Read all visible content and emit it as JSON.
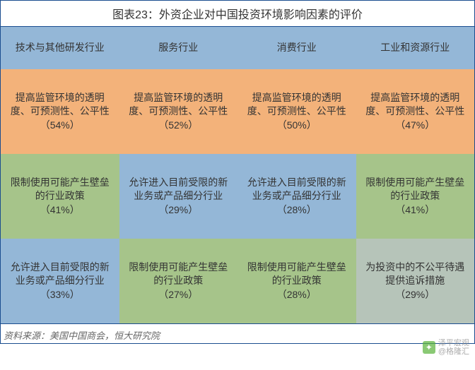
{
  "title": "图表23：外资企业对中国投资环境影响因素的评价",
  "footer": "资料来源：美国中国商会，恒大研究院",
  "watermark": {
    "top": "泽平宏观",
    "bottom": "@格隆汇"
  },
  "colors": {
    "header_bg": "#94b7d7",
    "orange": "#f3b27a",
    "green": "#a6c48a",
    "blue": "#94b7d7",
    "gray": "#b6c4b9",
    "border": "#1f3a6e"
  },
  "columns": [
    "技术与其他研发行业",
    "服务行业",
    "消费行业",
    "工业和资源行业"
  ],
  "rows": [
    [
      {
        "text": "提高监管环境的透明度、可预测性、公平性",
        "pct": "（54%）",
        "color": "orange"
      },
      {
        "text": "提高监管环境的透明度、可预测性、公平性",
        "pct": "（52%）",
        "color": "orange"
      },
      {
        "text": "提高监管环境的透明度、可预测性、公平性",
        "pct": "（50%）",
        "color": "orange"
      },
      {
        "text": "提高监管环境的透明度、可预测性、公平性",
        "pct": "（47%）",
        "color": "orange"
      }
    ],
    [
      {
        "text": "限制使用可能产生壁垒的行业政策",
        "pct": "（41%）",
        "color": "green"
      },
      {
        "text": "允许进入目前受限的新业务或产品细分行业",
        "pct": "（29%）",
        "color": "blue"
      },
      {
        "text": "允许进入目前受限的新业务或产品细分行业",
        "pct": "（28%）",
        "color": "blue"
      },
      {
        "text": "限制使用可能产生壁垒的行业政策",
        "pct": "（41%）",
        "color": "green"
      }
    ],
    [
      {
        "text": "允许进入目前受限的新业务或产品细分行业",
        "pct": "（33%）",
        "color": "blue"
      },
      {
        "text": "限制使用可能产生壁垒的行业政策",
        "pct": "（27%）",
        "color": "green"
      },
      {
        "text": "限制使用可能产生壁垒的行业政策",
        "pct": "（28%）",
        "color": "green"
      },
      {
        "text": "为投资中的不公平待遇提供追诉措施",
        "pct": "（29%）",
        "color": "gray"
      }
    ]
  ]
}
